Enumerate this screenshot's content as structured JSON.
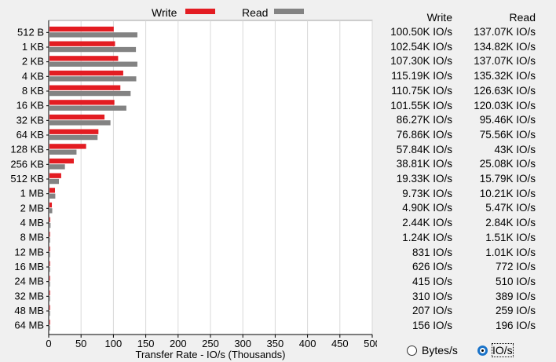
{
  "legend": {
    "write_label": "Write",
    "read_label": "Read"
  },
  "colors": {
    "write": "#e31c22",
    "read": "#838383",
    "grid": "#d8d8d8",
    "plot_bg": "#ffffff"
  },
  "chart_data": {
    "type": "bar",
    "orientation": "horizontal",
    "categories": [
      "512 B",
      "1 KB",
      "2 KB",
      "4 KB",
      "8 KB",
      "16 KB",
      "32 KB",
      "64 KB",
      "128 KB",
      "256 KB",
      "512 KB",
      "1 MB",
      "2 MB",
      "4 MB",
      "8 MB",
      "12 MB",
      "16 MB",
      "24 MB",
      "32 MB",
      "48 MB",
      "64 MB"
    ],
    "series": [
      {
        "name": "Write",
        "values": [
          100.5,
          102.54,
          107.3,
          115.19,
          110.75,
          101.55,
          86.27,
          76.86,
          57.84,
          38.81,
          19.33,
          9.73,
          4.9,
          2.44,
          1.24,
          0.831,
          0.626,
          0.415,
          0.31,
          0.207,
          0.156
        ]
      },
      {
        "name": "Read",
        "values": [
          137.07,
          134.82,
          137.07,
          135.32,
          126.63,
          120.03,
          95.46,
          75.56,
          43.0,
          25.08,
          15.79,
          10.21,
          5.47,
          2.84,
          1.51,
          1.01,
          0.772,
          0.51,
          0.389,
          0.259,
          0.196
        ]
      }
    ],
    "xlabel": "Transfer Rate - IO/s (Thousands)",
    "xlim": [
      0,
      500
    ],
    "xticks": [
      0,
      50,
      100,
      150,
      200,
      250,
      300,
      350,
      400,
      450,
      500
    ],
    "grid": true,
    "legend_position": "top"
  },
  "table": {
    "headers": {
      "write": "Write",
      "read": "Read"
    },
    "rows": [
      {
        "write": "100.50K IO/s",
        "read": "137.07K IO/s"
      },
      {
        "write": "102.54K IO/s",
        "read": "134.82K IO/s"
      },
      {
        "write": "107.30K IO/s",
        "read": "137.07K IO/s"
      },
      {
        "write": "115.19K IO/s",
        "read": "135.32K IO/s"
      },
      {
        "write": "110.75K IO/s",
        "read": "126.63K IO/s"
      },
      {
        "write": "101.55K IO/s",
        "read": "120.03K IO/s"
      },
      {
        "write": "86.27K IO/s",
        "read": "95.46K IO/s"
      },
      {
        "write": "76.86K IO/s",
        "read": "75.56K IO/s"
      },
      {
        "write": "57.84K IO/s",
        "read": "43K IO/s"
      },
      {
        "write": "38.81K IO/s",
        "read": "25.08K IO/s"
      },
      {
        "write": "19.33K IO/s",
        "read": "15.79K IO/s"
      },
      {
        "write": "9.73K IO/s",
        "read": "10.21K IO/s"
      },
      {
        "write": "4.90K IO/s",
        "read": "5.47K IO/s"
      },
      {
        "write": "2.44K IO/s",
        "read": "2.84K IO/s"
      },
      {
        "write": "1.24K IO/s",
        "read": "1.51K IO/s"
      },
      {
        "write": "831 IO/s",
        "read": "1.01K IO/s"
      },
      {
        "write": "626 IO/s",
        "read": "772 IO/s"
      },
      {
        "write": "415 IO/s",
        "read": "510 IO/s"
      },
      {
        "write": "310 IO/s",
        "read": "389 IO/s"
      },
      {
        "write": "207 IO/s",
        "read": "259 IO/s"
      },
      {
        "write": "156 IO/s",
        "read": "196 IO/s"
      }
    ]
  },
  "units": {
    "bytes_label": "Bytes/s",
    "ios_label": "IO/s",
    "selected": "IO/s"
  }
}
